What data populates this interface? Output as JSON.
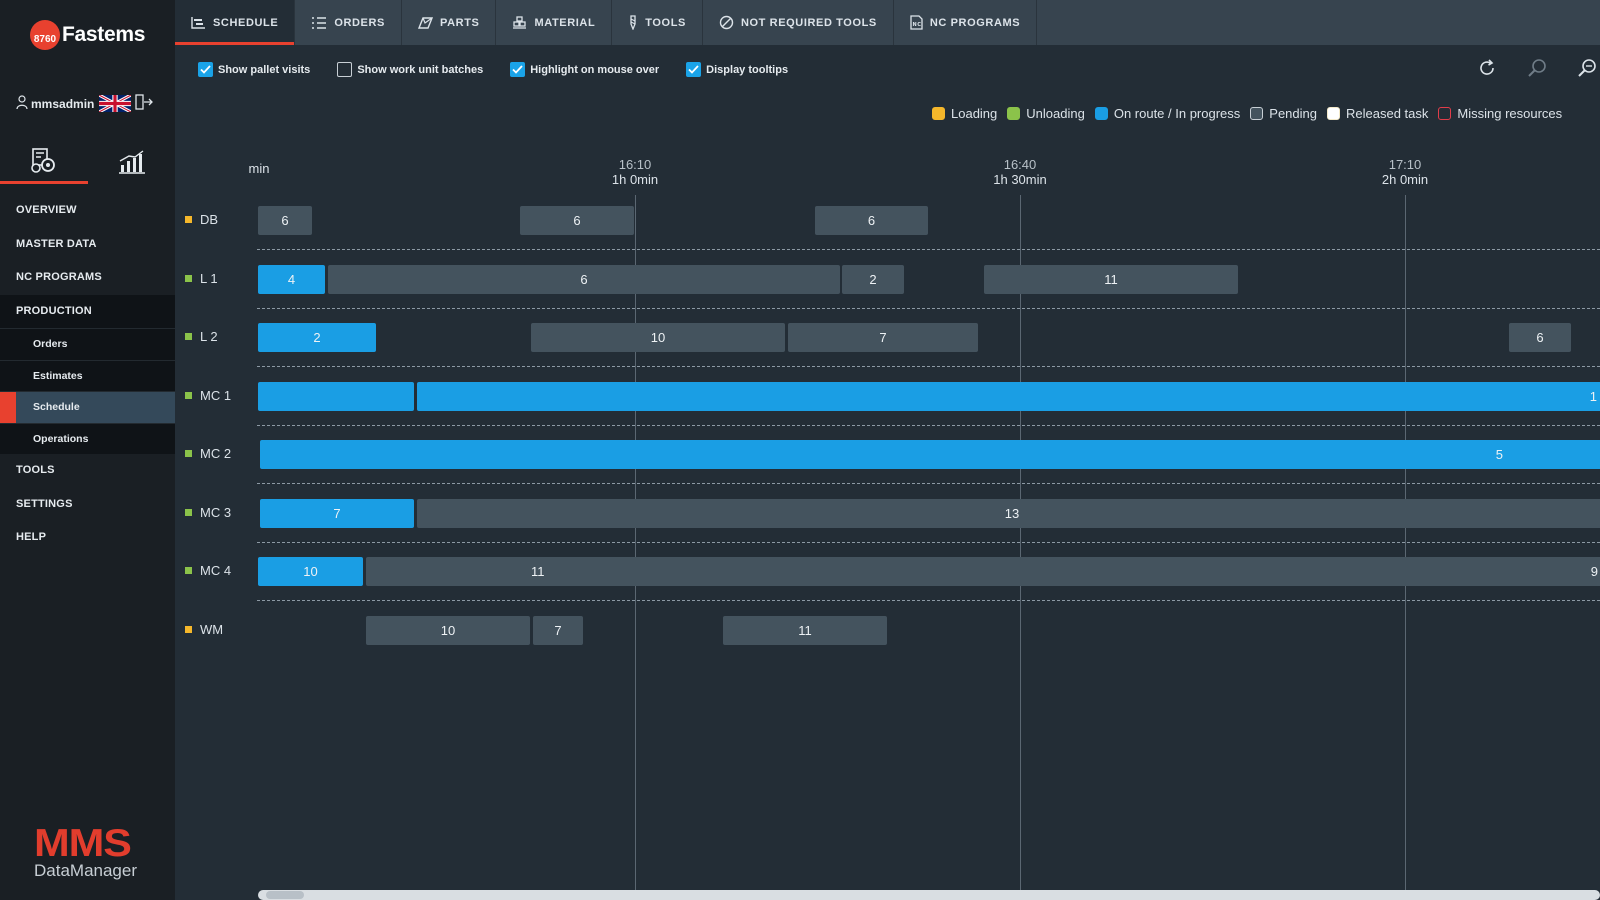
{
  "app": {
    "logo_badge": "8760",
    "logo_text": "Fastems",
    "brand_top": "MMS",
    "brand_bottom": "DataManager"
  },
  "user": {
    "name": "mmsadmin"
  },
  "nav": {
    "items": [
      "OVERVIEW",
      "MASTER DATA",
      "NC PROGRAMS",
      "PRODUCTION"
    ],
    "sub": [
      "Orders",
      "Estimates",
      "Schedule",
      "Operations"
    ],
    "items_after": [
      "TOOLS",
      "SETTINGS",
      "HELP"
    ]
  },
  "tabs": [
    "SCHEDULE",
    "ORDERS",
    "PARTS",
    "MATERIAL",
    "TOOLS",
    "NOT REQUIRED TOOLS",
    "NC PROGRAMS"
  ],
  "options": [
    {
      "label": "Show pallet visits",
      "checked": true
    },
    {
      "label": "Show work unit batches",
      "checked": false
    },
    {
      "label": "Highlight on mouse over",
      "checked": true
    },
    {
      "label": "Display tooltips",
      "checked": true
    }
  ],
  "legend": [
    {
      "label": "Loading",
      "color": "#f5b72b",
      "fill": "#f5b72b"
    },
    {
      "label": "Unloading",
      "color": "#8bc34a",
      "fill": "#8bc34a"
    },
    {
      "label": "On route / In progress",
      "color": "#1a9ee4",
      "fill": "#1a9ee4"
    },
    {
      "label": "Pending",
      "color": "#c8cfd5",
      "fill": "#44535e"
    },
    {
      "label": "Released task",
      "color": "#f3e9c9",
      "fill": "#ffffff"
    },
    {
      "label": "Missing resources",
      "color": "#e23d4a",
      "fill": "transparent"
    }
  ],
  "axis": [
    {
      "time": "",
      "dur": "min"
    },
    {
      "time": "16:10",
      "dur": "1h 0min"
    },
    {
      "time": "16:40",
      "dur": "1h 30min"
    },
    {
      "time": "17:10",
      "dur": "2h 0min"
    }
  ],
  "rows": [
    {
      "label": "DB",
      "dot": "#f5b72b"
    },
    {
      "label": "L 1",
      "dot": "#8bc34a"
    },
    {
      "label": "L 2",
      "dot": "#8bc34a"
    },
    {
      "label": "MC 1",
      "dot": "#8bc34a"
    },
    {
      "label": "MC 2",
      "dot": "#8bc34a"
    },
    {
      "label": "MC 3",
      "dot": "#8bc34a"
    },
    {
      "label": "MC 4",
      "dot": "#8bc34a"
    },
    {
      "label": "WM",
      "dot": "#f5b72b"
    }
  ],
  "bars": [
    {
      "row": 0,
      "label": "6",
      "status": "pending"
    },
    {
      "row": 0,
      "label": "6",
      "status": "pending"
    },
    {
      "row": 0,
      "label": "6",
      "status": "pending"
    },
    {
      "row": 1,
      "label": "4",
      "status": "in-progress"
    },
    {
      "row": 1,
      "label": "6",
      "status": "pending"
    },
    {
      "row": 1,
      "label": "2",
      "status": "pending"
    },
    {
      "row": 1,
      "label": "11",
      "status": "pending"
    },
    {
      "row": 2,
      "label": "2",
      "status": "in-progress"
    },
    {
      "row": 2,
      "label": "10",
      "status": "pending"
    },
    {
      "row": 2,
      "label": "7",
      "status": "pending"
    },
    {
      "row": 2,
      "label": "6",
      "status": "pending"
    },
    {
      "row": 3,
      "label": "",
      "status": "in-progress"
    },
    {
      "row": 3,
      "label": "1",
      "status": "in-progress"
    },
    {
      "row": 4,
      "label": "5",
      "status": "in-progress"
    },
    {
      "row": 5,
      "label": "7",
      "status": "in-progress"
    },
    {
      "row": 5,
      "label": "13",
      "status": "pending"
    },
    {
      "row": 6,
      "label": "10",
      "status": "in-progress"
    },
    {
      "row": 6,
      "label": "11",
      "status": "pending"
    },
    {
      "row": 6,
      "label": "9",
      "status": "pending"
    },
    {
      "row": 7,
      "label": "10",
      "status": "pending"
    },
    {
      "row": 7,
      "label": "7",
      "status": "pending"
    },
    {
      "row": 7,
      "label": "11",
      "status": "pending"
    }
  ]
}
